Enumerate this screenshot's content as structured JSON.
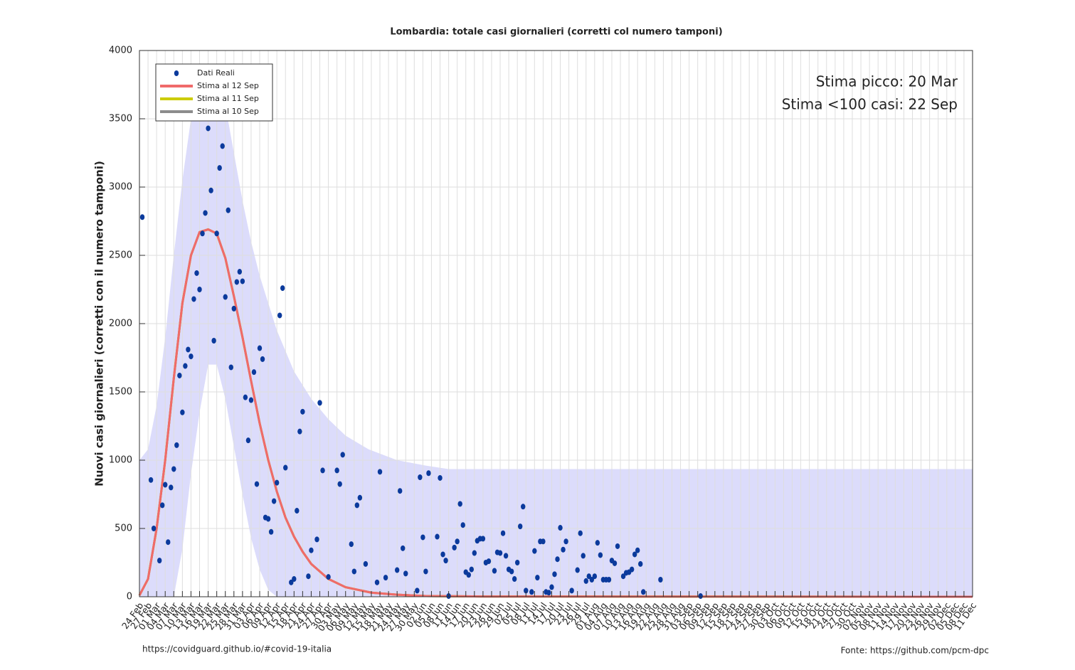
{
  "chart_data": {
    "type": "scatter",
    "title": "Lombardia: totale casi giornalieri (corretti col numero tamponi)",
    "ylabel": "Nuovi casi giornalieri (corretti con il numero tamponi)",
    "annotations": [
      "Stima picco: 20 Mar",
      "Stima <100 casi: 22 Sep"
    ],
    "footer_left": "https://covidguard.github.io/#covid-19-italia",
    "footer_right": "Fonte: https://github.com/pcm-dpc",
    "grid": true,
    "legend": "upper left",
    "xlim": [
      0,
      291
    ],
    "ylim": [
      0,
      4000
    ],
    "yticks": [
      0,
      500,
      1000,
      1500,
      2000,
      2500,
      3000,
      3500,
      4000
    ],
    "xticks": [
      {
        "value": 0,
        "label": "24 Feb"
      },
      {
        "value": 3,
        "label": "27 Feb"
      },
      {
        "value": 6,
        "label": "01 Mar"
      },
      {
        "value": 9,
        "label": "04 Mar"
      },
      {
        "value": 12,
        "label": "07 Mar"
      },
      {
        "value": 15,
        "label": "10 Mar"
      },
      {
        "value": 18,
        "label": "13 Mar"
      },
      {
        "value": 21,
        "label": "16 Mar"
      },
      {
        "value": 24,
        "label": "19 Mar"
      },
      {
        "value": 27,
        "label": "22 Mar"
      },
      {
        "value": 30,
        "label": "25 Mar"
      },
      {
        "value": 33,
        "label": "28 Mar"
      },
      {
        "value": 36,
        "label": "31 Mar"
      },
      {
        "value": 39,
        "label": "03 Apr"
      },
      {
        "value": 42,
        "label": "06 Apr"
      },
      {
        "value": 45,
        "label": "09 Apr"
      },
      {
        "value": 48,
        "label": "12 Apr"
      },
      {
        "value": 51,
        "label": "15 Apr"
      },
      {
        "value": 54,
        "label": "18 Apr"
      },
      {
        "value": 57,
        "label": "21 Apr"
      },
      {
        "value": 60,
        "label": "24 Apr"
      },
      {
        "value": 63,
        "label": "27 Apr"
      },
      {
        "value": 66,
        "label": "30 Apr"
      },
      {
        "value": 69,
        "label": "03 May"
      },
      {
        "value": 72,
        "label": "06 May"
      },
      {
        "value": 75,
        "label": "09 May"
      },
      {
        "value": 78,
        "label": "12 May"
      },
      {
        "value": 81,
        "label": "15 May"
      },
      {
        "value": 84,
        "label": "18 May"
      },
      {
        "value": 87,
        "label": "21 May"
      },
      {
        "value": 90,
        "label": "24 May"
      },
      {
        "value": 93,
        "label": "27 May"
      },
      {
        "value": 96,
        "label": "30 May"
      },
      {
        "value": 99,
        "label": "02 Jun"
      },
      {
        "value": 102,
        "label": "05 Jun"
      },
      {
        "value": 105,
        "label": "08 Jun"
      },
      {
        "value": 108,
        "label": "11 Jun"
      },
      {
        "value": 111,
        "label": "14 Jun"
      },
      {
        "value": 114,
        "label": "17 Jun"
      },
      {
        "value": 117,
        "label": "20 Jun"
      },
      {
        "value": 120,
        "label": "23 Jun"
      },
      {
        "value": 123,
        "label": "26 Jun"
      },
      {
        "value": 126,
        "label": "29 Jun"
      },
      {
        "value": 129,
        "label": "02 Jul"
      },
      {
        "value": 132,
        "label": "05 Jul"
      },
      {
        "value": 135,
        "label": "08 Jul"
      },
      {
        "value": 138,
        "label": "11 Jul"
      },
      {
        "value": 141,
        "label": "14 Jul"
      },
      {
        "value": 144,
        "label": "17 Jul"
      },
      {
        "value": 147,
        "label": "20 Jul"
      },
      {
        "value": 150,
        "label": "23 Jul"
      },
      {
        "value": 153,
        "label": "26 Jul"
      },
      {
        "value": 156,
        "label": "29 Jul"
      },
      {
        "value": 159,
        "label": "01 Aug"
      },
      {
        "value": 162,
        "label": "04 Aug"
      },
      {
        "value": 165,
        "label": "07 Aug"
      },
      {
        "value": 168,
        "label": "10 Aug"
      },
      {
        "value": 171,
        "label": "13 Aug"
      },
      {
        "value": 174,
        "label": "16 Aug"
      },
      {
        "value": 177,
        "label": "19 Aug"
      },
      {
        "value": 180,
        "label": "22 Aug"
      },
      {
        "value": 183,
        "label": "25 Aug"
      },
      {
        "value": 186,
        "label": "28 Aug"
      },
      {
        "value": 189,
        "label": "31 Aug"
      },
      {
        "value": 192,
        "label": "03 Sep"
      },
      {
        "value": 195,
        "label": "06 Sep"
      },
      {
        "value": 198,
        "label": "09 Sep"
      },
      {
        "value": 201,
        "label": "12 Sep"
      },
      {
        "value": 204,
        "label": "15 Sep"
      },
      {
        "value": 207,
        "label": "18 Sep"
      },
      {
        "value": 210,
        "label": "21 Sep"
      },
      {
        "value": 213,
        "label": "24 Sep"
      },
      {
        "value": 216,
        "label": "27 Sep"
      },
      {
        "value": 219,
        "label": "30 Sep"
      },
      {
        "value": 222,
        "label": "03 Oct"
      },
      {
        "value": 225,
        "label": "06 Oct"
      },
      {
        "value": 228,
        "label": "09 Oct"
      },
      {
        "value": 231,
        "label": "12 Oct"
      },
      {
        "value": 234,
        "label": "15 Oct"
      },
      {
        "value": 237,
        "label": "18 Oct"
      },
      {
        "value": 240,
        "label": "21 Oct"
      },
      {
        "value": 243,
        "label": "24 Oct"
      },
      {
        "value": 246,
        "label": "27 Oct"
      },
      {
        "value": 249,
        "label": "30 Oct"
      },
      {
        "value": 252,
        "label": "02 Nov"
      },
      {
        "value": 255,
        "label": "05 Nov"
      },
      {
        "value": 258,
        "label": "08 Nov"
      },
      {
        "value": 261,
        "label": "11 Nov"
      },
      {
        "value": 264,
        "label": "14 Nov"
      },
      {
        "value": 267,
        "label": "17 Nov"
      },
      {
        "value": 270,
        "label": "20 Nov"
      },
      {
        "value": 273,
        "label": "23 Nov"
      },
      {
        "value": 276,
        "label": "26 Nov"
      },
      {
        "value": 279,
        "label": "29 Nov"
      },
      {
        "value": 282,
        "label": "02 Dec"
      },
      {
        "value": 285,
        "label": "05 Dec"
      },
      {
        "value": 288,
        "label": "08 Dec"
      },
      {
        "value": 291,
        "label": "11 Dec"
      }
    ],
    "band": {
      "color": "#dcdcfb",
      "x": [
        0,
        3,
        6,
        9,
        12,
        15,
        18,
        21,
        24,
        27,
        30,
        33,
        36,
        39,
        42,
        45,
        48,
        51,
        54,
        60,
        66,
        72,
        80,
        90,
        100,
        108,
        291
      ],
      "upper": [
        1000,
        1080,
        1400,
        1900,
        2500,
        3050,
        3500,
        3800,
        3900,
        3850,
        3600,
        3250,
        2900,
        2600,
        2350,
        2150,
        1950,
        1800,
        1650,
        1450,
        1300,
        1180,
        1080,
        1000,
        960,
        935,
        935
      ],
      "lower": [
        0,
        0,
        0,
        0,
        0,
        350,
        900,
        1350,
        1700,
        1700,
        1450,
        1100,
        750,
        430,
        200,
        50,
        0,
        0,
        0,
        0,
        0,
        0,
        0,
        0,
        0,
        0,
        0
      ]
    },
    "series": [
      {
        "name": "Dati Reali",
        "kind": "scatter",
        "color": "#0b3a9c",
        "x": [
          1,
          4,
          5,
          7,
          8,
          9,
          10,
          11,
          12,
          13,
          14,
          15,
          16,
          17,
          18,
          19,
          20,
          21,
          22,
          23,
          24,
          25,
          26,
          27,
          28,
          29,
          30,
          31,
          32,
          33,
          34,
          35,
          36,
          37,
          38,
          39,
          40,
          41,
          42,
          43,
          44,
          45,
          46,
          47,
          48,
          49,
          50,
          51,
          53,
          54,
          55,
          56,
          57,
          59,
          60,
          62,
          63,
          64,
          66,
          69,
          70,
          71,
          74,
          75,
          76,
          77,
          79,
          83,
          84,
          86,
          90,
          91,
          92,
          93,
          97,
          98,
          99,
          100,
          101,
          104,
          105,
          106,
          107,
          108,
          110,
          111,
          112,
          113,
          114,
          115,
          116,
          117,
          118,
          119,
          120,
          121,
          122,
          124,
          125,
          126,
          127,
          128,
          129,
          130,
          131,
          132,
          133,
          134,
          135,
          137,
          138,
          139,
          140,
          141,
          142,
          143,
          144,
          145,
          146,
          147,
          148,
          149,
          151,
          153,
          154,
          155,
          156,
          157,
          158,
          159,
          160,
          161,
          162,
          163,
          164,
          165,
          166,
          167,
          169,
          170,
          171,
          172,
          173,
          174,
          175,
          176,
          182,
          196
        ],
        "values": [
          2780,
          855,
          500,
          265,
          670,
          820,
          400,
          800,
          935,
          1110,
          1620,
          1350,
          1690,
          1810,
          1760,
          2180,
          2370,
          2250,
          2660,
          2810,
          3430,
          2975,
          1875,
          2660,
          3140,
          3300,
          2195,
          2830,
          1680,
          2110,
          2305,
          2380,
          2310,
          1460,
          1145,
          1440,
          1645,
          825,
          1820,
          1740,
          580,
          570,
          475,
          700,
          835,
          2060,
          2260,
          945,
          105,
          130,
          630,
          1210,
          1355,
          150,
          340,
          420,
          1420,
          925,
          145,
          925,
          825,
          1040,
          385,
          185,
          670,
          725,
          240,
          105,
          915,
          140,
          195,
          775,
          355,
          170,
          45,
          875,
          435,
          185,
          905,
          440,
          870,
          310,
          265,
          5,
          360,
          405,
          680,
          525,
          180,
          160,
          200,
          320,
          410,
          425,
          425,
          250,
          260,
          190,
          325,
          320,
          465,
          300,
          200,
          185,
          130,
          250,
          515,
          660,
          45,
          35,
          335,
          140,
          405,
          405,
          35,
          30,
          70,
          165,
          275,
          505,
          345,
          405,
          45,
          195,
          465,
          300,
          115,
          150,
          125,
          150,
          395,
          305,
          125,
          125,
          125,
          265,
          245,
          370,
          150,
          175,
          180,
          200,
          310,
          340,
          240,
          35,
          125,
          5
        ]
      },
      {
        "name": "Stima al 12 Sep",
        "kind": "line",
        "color": "#f06a6a",
        "x": [
          0,
          3,
          6,
          9,
          12,
          15,
          18,
          21,
          24,
          27,
          30,
          33,
          36,
          39,
          42,
          45,
          48,
          51,
          54,
          57,
          60,
          66,
          72,
          81,
          90,
          100,
          120,
          291
        ],
        "values": [
          10,
          130,
          500,
          1000,
          1600,
          2150,
          2500,
          2670,
          2690,
          2660,
          2480,
          2200,
          1900,
          1580,
          1270,
          1000,
          770,
          580,
          440,
          330,
          240,
          130,
          70,
          30,
          15,
          5,
          2,
          0
        ]
      },
      {
        "name": "Stima al 11 Sep",
        "kind": "line",
        "color": "#cccc00",
        "x": [
          0,
          3,
          6,
          9,
          12,
          15,
          18,
          21,
          24,
          27,
          30,
          33,
          36,
          39,
          42,
          45,
          48,
          51,
          54,
          57,
          60,
          66,
          72,
          81,
          90,
          100,
          120,
          291
        ],
        "values": [
          10,
          130,
          500,
          1000,
          1600,
          2150,
          2500,
          2670,
          2690,
          2660,
          2480,
          2200,
          1900,
          1580,
          1270,
          1000,
          770,
          580,
          440,
          330,
          240,
          130,
          70,
          30,
          15,
          5,
          2,
          0
        ]
      },
      {
        "name": "Stima al 10 Sep",
        "kind": "line",
        "color": "#8c8c8c",
        "x": [
          0,
          3,
          6,
          9,
          12,
          15,
          18,
          21,
          24,
          27,
          30,
          33,
          36,
          39,
          42,
          45,
          48,
          51,
          54,
          57,
          60,
          66,
          72,
          81,
          90,
          100,
          120,
          291
        ],
        "values": [
          10,
          130,
          500,
          1000,
          1600,
          2150,
          2500,
          2670,
          2690,
          2660,
          2480,
          2200,
          1900,
          1580,
          1270,
          1000,
          770,
          580,
          440,
          330,
          240,
          130,
          70,
          30,
          15,
          5,
          2,
          0
        ]
      }
    ]
  }
}
